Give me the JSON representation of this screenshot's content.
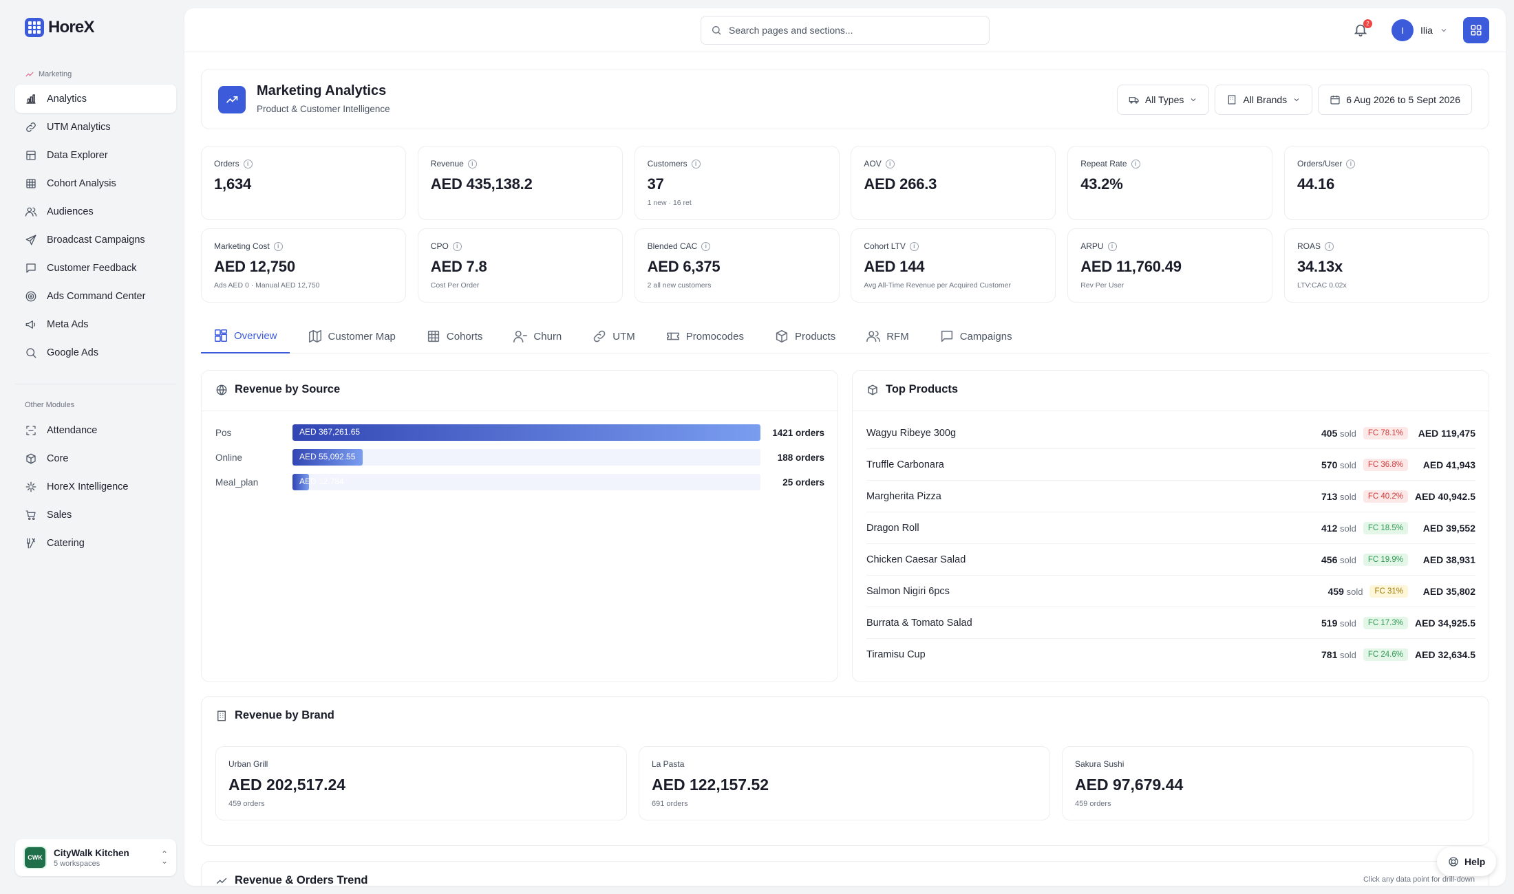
{
  "brand": {
    "name": "HoreX"
  },
  "sidebar": {
    "section1": "Marketing",
    "items": [
      {
        "label": "Analytics",
        "icon": "bar-chart-icon",
        "active": true
      },
      {
        "label": "UTM Analytics",
        "icon": "link-icon"
      },
      {
        "label": "Data Explorer",
        "icon": "table-icon"
      },
      {
        "label": "Cohort Analysis",
        "icon": "grid-icon"
      },
      {
        "label": "Audiences",
        "icon": "users-icon"
      },
      {
        "label": "Broadcast Campaigns",
        "icon": "send-icon"
      },
      {
        "label": "Customer Feedback",
        "icon": "message-icon"
      },
      {
        "label": "Ads Command Center",
        "icon": "target-icon"
      },
      {
        "label": "Meta Ads",
        "icon": "megaphone-icon"
      },
      {
        "label": "Google Ads",
        "icon": "search-icon"
      }
    ],
    "section2": "Other Modules",
    "items2": [
      {
        "label": "Attendance",
        "icon": "scan-icon"
      },
      {
        "label": "Core",
        "icon": "cube-icon"
      },
      {
        "label": "HoreX Intelligence",
        "icon": "sparkle-icon"
      },
      {
        "label": "Sales",
        "icon": "cart-icon"
      },
      {
        "label": "Catering",
        "icon": "utensils-icon"
      }
    ],
    "workspace": {
      "logo": "CWK",
      "name": "CityWalk Kitchen",
      "sub": "5 workspaces"
    }
  },
  "topbar": {
    "search_placeholder": "Search pages and sections...",
    "notifications": "2",
    "user_initial": "I",
    "user_name": "Ilia"
  },
  "header": {
    "title": "Marketing Analytics",
    "subtitle": "Product & Customer Intelligence",
    "filters": {
      "types": "All Types",
      "brands": "All Brands",
      "dates": "6 Aug 2026 to 5 Sept 2026"
    }
  },
  "kpis": [
    {
      "label": "Orders",
      "value": "1,634",
      "sub": ""
    },
    {
      "label": "Revenue",
      "value": "AED 435,138.2",
      "sub": ""
    },
    {
      "label": "Customers",
      "value": "37",
      "sub": "1 new · 16 ret"
    },
    {
      "label": "AOV",
      "value": "AED 266.3",
      "sub": ""
    },
    {
      "label": "Repeat Rate",
      "value": "43.2%",
      "sub": ""
    },
    {
      "label": "Orders/User",
      "value": "44.16",
      "sub": ""
    },
    {
      "label": "Marketing Cost",
      "value": "AED 12,750",
      "sub": "Ads AED 0 · Manual AED 12,750"
    },
    {
      "label": "CPO",
      "value": "AED 7.8",
      "sub": "Cost Per Order"
    },
    {
      "label": "Blended CAC",
      "value": "AED 6,375",
      "sub": "2 all new customers"
    },
    {
      "label": "Cohort LTV",
      "value": "AED 144",
      "sub": "Avg All-Time Revenue per Acquired Customer"
    },
    {
      "label": "ARPU",
      "value": "AED 11,760.49",
      "sub": "Rev Per User"
    },
    {
      "label": "ROAS",
      "value": "34.13x",
      "sub": "LTV:CAC 0.02x"
    }
  ],
  "tabs": [
    {
      "label": "Overview",
      "icon": "layout-icon",
      "active": true
    },
    {
      "label": "Customer Map",
      "icon": "map-icon"
    },
    {
      "label": "Cohorts",
      "icon": "grid-icon"
    },
    {
      "label": "Churn",
      "icon": "user-minus-icon"
    },
    {
      "label": "UTM",
      "icon": "link-icon"
    },
    {
      "label": "Promocodes",
      "icon": "ticket-icon"
    },
    {
      "label": "Products",
      "icon": "box-icon"
    },
    {
      "label": "RFM",
      "icon": "users-icon"
    },
    {
      "label": "Campaigns",
      "icon": "message-icon"
    }
  ],
  "revenue_by_source": {
    "title": "Revenue by Source",
    "rows": [
      {
        "name": "Pos",
        "value": "AED 367,261.65",
        "share": 1.0,
        "orders": "1421 orders"
      },
      {
        "name": "Online",
        "value": "AED 55,092.55",
        "share": 0.15,
        "orders": "188 orders"
      },
      {
        "name": "Meal_plan",
        "value": "AED 12,784",
        "share": 0.035,
        "orders": "25 orders"
      }
    ]
  },
  "top_products": {
    "title": "Top Products",
    "sold_label": "sold",
    "rows": [
      {
        "name": "Wagyu Ribeye 300g",
        "sold": "405",
        "fc": "FC 78.1%",
        "fc_color": "red",
        "revenue": "AED 119,475"
      },
      {
        "name": "Truffle Carbonara",
        "sold": "570",
        "fc": "FC 36.8%",
        "fc_color": "red",
        "revenue": "AED 41,943"
      },
      {
        "name": "Margherita Pizza",
        "sold": "713",
        "fc": "FC 40.2%",
        "fc_color": "red",
        "revenue": "AED 40,942.5"
      },
      {
        "name": "Dragon Roll",
        "sold": "412",
        "fc": "FC 18.5%",
        "fc_color": "green",
        "revenue": "AED 39,552"
      },
      {
        "name": "Chicken Caesar Salad",
        "sold": "456",
        "fc": "FC 19.9%",
        "fc_color": "green",
        "revenue": "AED 38,931"
      },
      {
        "name": "Salmon Nigiri 6pcs",
        "sold": "459",
        "fc": "FC 31%",
        "fc_color": "yellow",
        "revenue": "AED 35,802"
      },
      {
        "name": "Burrata & Tomato Salad",
        "sold": "519",
        "fc": "FC 17.3%",
        "fc_color": "green",
        "revenue": "AED 34,925.5"
      },
      {
        "name": "Tiramisu Cup",
        "sold": "781",
        "fc": "FC 24.6%",
        "fc_color": "green",
        "revenue": "AED 32,634.5"
      }
    ]
  },
  "revenue_by_brand": {
    "title": "Revenue by Brand",
    "brands": [
      {
        "name": "Urban Grill",
        "value": "AED 202,517.24",
        "orders": "459 orders"
      },
      {
        "name": "La Pasta",
        "value": "AED 122,157.52",
        "orders": "691 orders"
      },
      {
        "name": "Sakura Sushi",
        "value": "AED 97,679.44",
        "orders": "459 orders"
      }
    ]
  },
  "trend": {
    "title": "Revenue & Orders Trend",
    "hint": "Click any data point for drill-down"
  },
  "help": {
    "label": "Help"
  }
}
